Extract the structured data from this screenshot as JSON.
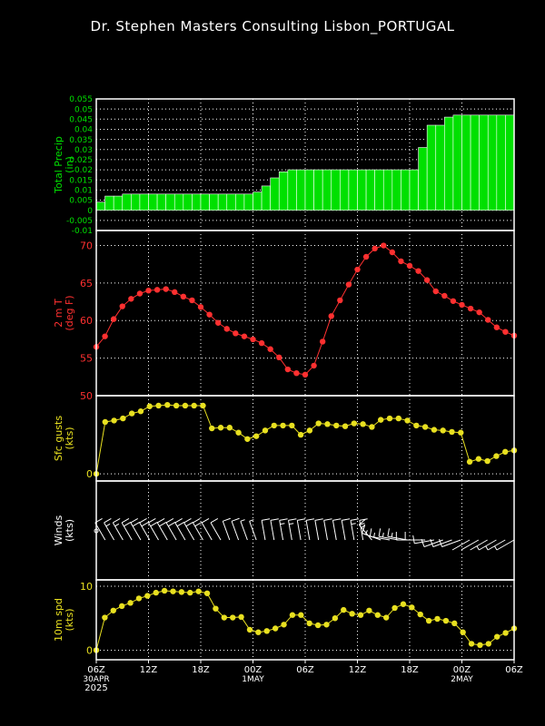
{
  "title": "Dr. Stephen Masters Consulting  Lisbon_PORTUGAL",
  "colors": {
    "precip": "#00e000",
    "temp": "#ff3030",
    "gust": "#e8e020",
    "wind": "#ffffff",
    "spd": "#e8e020"
  },
  "x_axis": {
    "ticks": [
      {
        "h": 0,
        "label": "06Z",
        "sub": "30APR",
        "sub2": "2025"
      },
      {
        "h": 6,
        "label": "12Z"
      },
      {
        "h": 12,
        "label": "18Z"
      },
      {
        "h": 18,
        "label": "00Z",
        "sub": "1MAY"
      },
      {
        "h": 24,
        "label": "06Z"
      },
      {
        "h": 30,
        "label": "12Z"
      },
      {
        "h": 36,
        "label": "18Z"
      },
      {
        "h": 42,
        "label": "00Z",
        "sub": "2MAY"
      },
      {
        "h": 48,
        "label": "06Z"
      }
    ]
  },
  "chart_data": [
    {
      "type": "bar",
      "ylabel": "Total Precip (in)",
      "ylim": [
        -0.01,
        0.055
      ],
      "yticks": [
        "-0.01",
        "-0.005",
        "0",
        "0.005",
        "0.01",
        "0.015",
        "0.02",
        "0.025",
        "0.03",
        "0.035",
        "0.04",
        "0.045",
        "0.05",
        "0.055"
      ],
      "grid": true,
      "values": [
        0.004,
        0.007,
        0.007,
        0.008,
        0.008,
        0.008,
        0.008,
        0.008,
        0.008,
        0.008,
        0.008,
        0.008,
        0.008,
        0.008,
        0.008,
        0.008,
        0.008,
        0.008,
        0.009,
        0.012,
        0.016,
        0.019,
        0.02,
        0.02,
        0.02,
        0.02,
        0.02,
        0.02,
        0.02,
        0.02,
        0.02,
        0.02,
        0.02,
        0.02,
        0.02,
        0.02,
        0.02,
        0.031,
        0.042,
        0.042,
        0.046,
        0.047,
        0.047,
        0.047,
        0.047,
        0.047,
        0.047,
        0.047
      ]
    },
    {
      "type": "line",
      "ylabel": "2 m T (deg F)",
      "ylim": [
        50,
        72
      ],
      "yticks": [
        "50",
        "55",
        "60",
        "65",
        "70"
      ],
      "grid": true,
      "values": [
        56.5,
        57.9,
        60.2,
        61.9,
        62.9,
        63.6,
        64,
        64.1,
        64.2,
        63.8,
        63.2,
        62.7,
        61.8,
        60.8,
        59.7,
        58.9,
        58.3,
        57.9,
        57.5,
        57,
        56.2,
        55.1,
        53.5,
        53,
        52.8,
        54,
        57.2,
        60.6,
        62.7,
        64.8,
        66.8,
        68.5,
        69.6,
        70,
        69.1,
        67.9,
        67.3,
        66.6,
        65.4,
        63.9,
        63.3,
        62.6,
        62.1,
        61.6,
        61.1,
        60.1,
        59.1,
        58.5,
        58
      ]
    },
    {
      "type": "line",
      "ylabel": "Sfc gusts (kts)",
      "ylim": [
        -1,
        11
      ],
      "yticks": [
        "0"
      ],
      "grid": true,
      "values": [
        0,
        7.3,
        7.5,
        7.8,
        8.5,
        8.8,
        9.5,
        9.6,
        9.7,
        9.6,
        9.6,
        9.6,
        9.6,
        6.4,
        6.5,
        6.5,
        5.8,
        4.9,
        5.3,
        6.1,
        6.8,
        6.8,
        6.8,
        5.5,
        6.1,
        7.1,
        7,
        6.8,
        6.7,
        7.1,
        7,
        6.6,
        7.6,
        7.8,
        7.8,
        7.5,
        6.8,
        6.6,
        6.2,
        6.1,
        5.9,
        5.8,
        1.7,
        2.1,
        1.8,
        2.5,
        3.1,
        3.3
      ]
    },
    {
      "type": "table",
      "ylabel": "Winds (kts)",
      "wind_dir": [
        260,
        330,
        330,
        330,
        330,
        330,
        330,
        330,
        330,
        330,
        330,
        330,
        330,
        330,
        330,
        340,
        340,
        340,
        340,
        350,
        350,
        350,
        350,
        350,
        350,
        350,
        350,
        350,
        350,
        350,
        350,
        320,
        290,
        280,
        280,
        280,
        270,
        270,
        260,
        250,
        250,
        250,
        240,
        240,
        240,
        240,
        240,
        240
      ],
      "wind_spd": [
        0,
        5,
        6,
        7,
        8,
        8,
        9,
        9,
        9,
        9,
        9,
        9,
        9,
        5,
        5,
        5,
        4,
        3,
        3,
        4,
        5,
        6,
        6,
        4,
        4,
        5,
        5,
        5,
        5,
        6,
        6,
        6,
        6,
        7,
        7,
        6,
        5,
        5,
        5,
        5,
        5,
        5,
        1,
        1,
        1,
        2,
        2,
        3
      ]
    },
    {
      "type": "line",
      "ylabel": "10m spd (kts)",
      "ylim": [
        -1.5,
        11
      ],
      "yticks": [
        "0",
        "10"
      ],
      "grid": true,
      "values": [
        0,
        5.1,
        6.2,
        6.9,
        7.4,
        8.1,
        8.5,
        9,
        9.3,
        9.2,
        9.1,
        9,
        9.2,
        8.9,
        6.5,
        5.1,
        5.1,
        5.2,
        3.2,
        2.8,
        3,
        3.4,
        4,
        5.5,
        5.5,
        4.2,
        3.9,
        4,
        5,
        6.3,
        5.7,
        5.5,
        6.2,
        5.5,
        5.1,
        6.6,
        7.2,
        6.7,
        5.6,
        4.6,
        4.9,
        4.6,
        4.2,
        2.8,
        1,
        0.8,
        1,
        2.1,
        2.7,
        3.4
      ]
    }
  ]
}
